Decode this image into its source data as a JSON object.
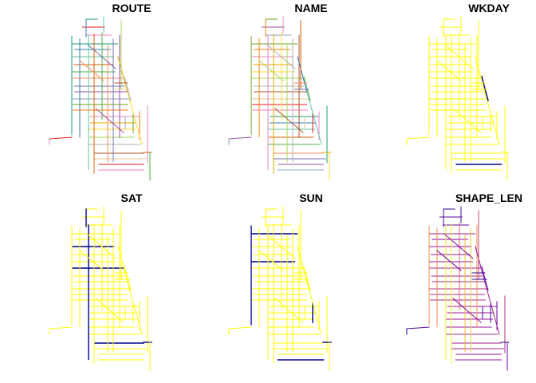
{
  "panels": [
    {
      "title": "ROUTE",
      "color_mode": "categorical"
    },
    {
      "title": "NAME",
      "color_mode": "categorical"
    },
    {
      "title": "WKDAY",
      "color_mode": "binary",
      "colors": [
        "#ffff00",
        "#00008b"
      ],
      "dark_share": 0.02
    },
    {
      "title": "SAT",
      "color_mode": "binary",
      "colors": [
        "#ffff00",
        "#00008b"
      ],
      "dark_share": 0.2
    },
    {
      "title": "SUN",
      "color_mode": "binary",
      "colors": [
        "#ffff00",
        "#00008b"
      ],
      "dark_share": 0.2
    },
    {
      "title": "SHAPE_LEN",
      "color_mode": "continuous",
      "colors": [
        "#0d0887",
        "#7e03a8",
        "#cc4778",
        "#f89540",
        "#f0f921"
      ]
    }
  ],
  "categorical_palette": [
    "#e41a1c",
    "#377eb8",
    "#4daf4a",
    "#984ea3",
    "#ff7f00",
    "#ffd92f",
    "#a65628",
    "#f781bf",
    "#66c2a5",
    "#fc8d62",
    "#8da0cb",
    "#e78ac3",
    "#a6d854",
    "#e5c494",
    "#1b9e77",
    "#d95f02",
    "#7570b3",
    "#66a61e",
    "#e6ab02",
    "#b3b3b3"
  ]
}
